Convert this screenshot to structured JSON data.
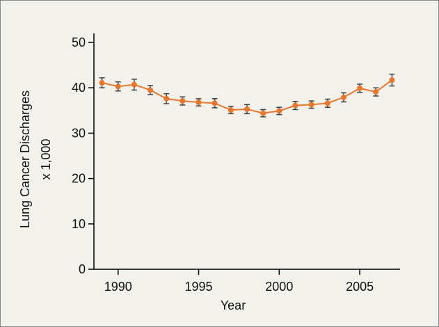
{
  "chart_data": {
    "type": "line",
    "xlabel": "Year",
    "ylabel_lines": [
      "Lung Cancer Discharges",
      "x 1,000"
    ],
    "xlim": [
      1988.5,
      2007.5
    ],
    "ylim": [
      0,
      50
    ],
    "x_ticks": [
      1990,
      1995,
      2000,
      2005
    ],
    "x_tick_labels": [
      "1990",
      "1995",
      "2000",
      "2005"
    ],
    "y_ticks": [
      0,
      10,
      20,
      30,
      40,
      50
    ],
    "y_tick_labels": [
      "0",
      "10",
      "20",
      "30",
      "40",
      "50"
    ],
    "grid": false,
    "line_color": "#e8772e",
    "error_bar_color": "#404040",
    "series": [
      {
        "x": [
          1989,
          1990,
          1991,
          1992,
          1993,
          1994,
          1995,
          1996,
          1997,
          1998,
          1999,
          2000,
          2001,
          2002,
          2003,
          2004,
          2005,
          2006,
          2007
        ],
        "y": [
          41.1,
          40.3,
          40.7,
          39.5,
          37.6,
          37.1,
          36.8,
          36.6,
          35.1,
          35.3,
          34.4,
          34.9,
          36.1,
          36.3,
          36.6,
          37.9,
          39.9,
          39.1,
          41.7
        ],
        "err": [
          1.1,
          1.0,
          1.2,
          1.0,
          1.1,
          0.9,
          0.8,
          1.0,
          0.8,
          1.0,
          0.8,
          0.8,
          0.9,
          0.8,
          0.9,
          1.0,
          0.9,
          0.9,
          1.3
        ]
      }
    ]
  }
}
